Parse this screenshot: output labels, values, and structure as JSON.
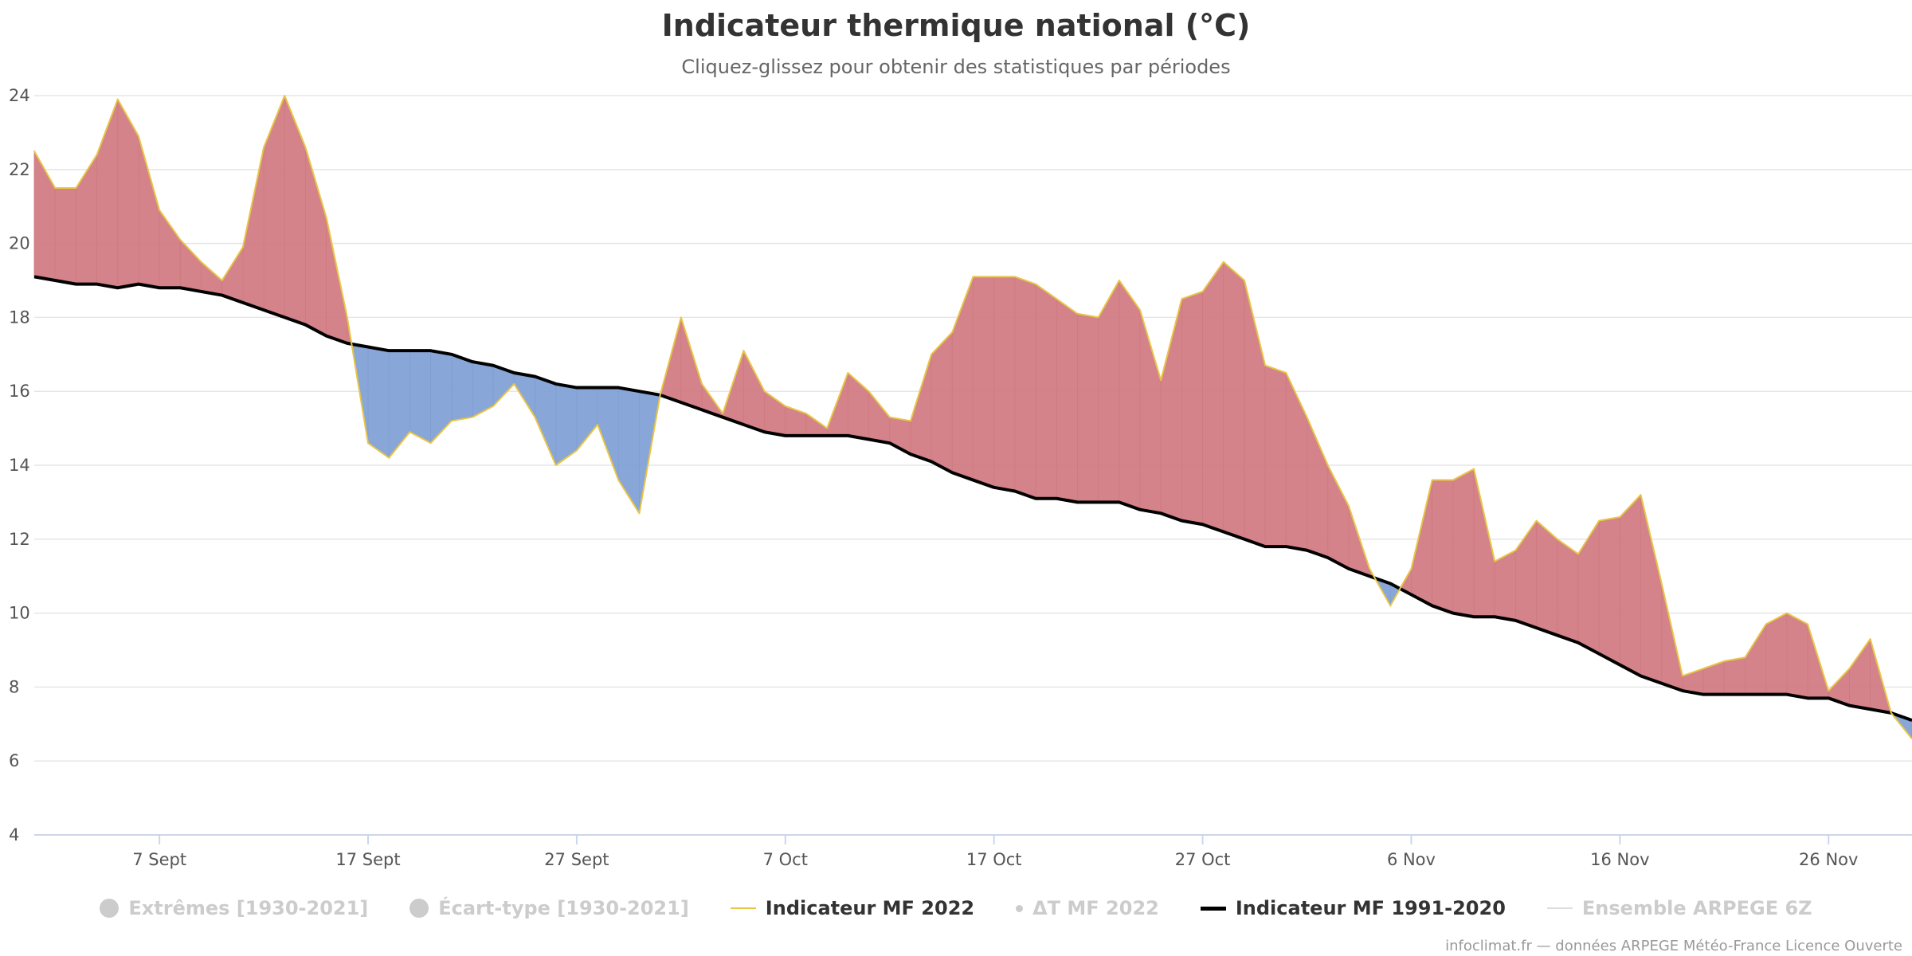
{
  "title": "Indicateur thermique national (°C)",
  "subtitle": "Cliquez-glissez pour obtenir des statistiques par périodes",
  "credits": "infoclimat.fr — données ARPEGE Météo-France Licence Ouverte",
  "legend": [
    {
      "label": "Extrêmes [1930-2021]",
      "symbol": "circle",
      "active": false
    },
    {
      "label": "Écart-type [1930-2021]",
      "symbol": "circle",
      "active": false
    },
    {
      "label": "Indicateur MF 2022",
      "symbol": "line",
      "color": "#e8c547",
      "active": true
    },
    {
      "label": "ΔT MF 2022",
      "symbol": "dot",
      "active": false
    },
    {
      "label": "Indicateur MF 1991-2020",
      "symbol": "line-thick",
      "color": "#000000",
      "active": true
    },
    {
      "label": "Ensemble ARPEGE 6Z",
      "symbol": "line-thin",
      "color": "#dddddd",
      "active": false
    }
  ],
  "chart_data": {
    "type": "area",
    "colors": {
      "above_normal": "#d07a80",
      "below_normal": "#7f9fd4",
      "indicator_line": "#e8c547",
      "normal_line": "#000000",
      "grid": "#e6e6e6",
      "axis": "#ccd6eb"
    },
    "ylim": [
      4,
      24
    ],
    "yticks": [
      4,
      6,
      8,
      10,
      12,
      14,
      16,
      18,
      20,
      22,
      24
    ],
    "x_start": "2022-09-01",
    "x_end": "2022-11-30",
    "xticks": [
      {
        "date": "2022-09-07",
        "label": "7 Sept"
      },
      {
        "date": "2022-09-17",
        "label": "17 Sept"
      },
      {
        "date": "2022-09-27",
        "label": "27 Sept"
      },
      {
        "date": "2022-10-07",
        "label": "7 Oct"
      },
      {
        "date": "2022-10-17",
        "label": "17 Oct"
      },
      {
        "date": "2022-10-27",
        "label": "27 Oct"
      },
      {
        "date": "2022-11-06",
        "label": "6 Nov"
      },
      {
        "date": "2022-11-16",
        "label": "16 Nov"
      },
      {
        "date": "2022-11-26",
        "label": "26 Nov"
      }
    ],
    "start_date": "2022-09-01",
    "series": [
      {
        "name": "Indicateur MF 2022",
        "values": [
          22.5,
          21.5,
          21.5,
          22.4,
          23.9,
          22.9,
          20.9,
          20.1,
          19.5,
          19.0,
          19.9,
          22.6,
          24.0,
          22.6,
          20.7,
          18.0,
          14.6,
          14.2,
          14.9,
          14.6,
          15.2,
          15.3,
          15.6,
          16.2,
          15.3,
          14.0,
          14.4,
          15.1,
          13.6,
          12.7,
          15.9,
          18.0,
          16.2,
          15.4,
          17.1,
          16.0,
          15.6,
          15.4,
          15.0,
          16.5,
          16.0,
          15.3,
          15.2,
          17.0,
          17.6,
          19.1,
          19.1,
          19.1,
          18.9,
          18.5,
          18.1,
          18.0,
          19.0,
          18.2,
          16.3,
          18.5,
          18.7,
          19.5,
          19.0,
          16.7,
          16.5,
          15.3,
          14.0,
          12.9,
          11.2,
          10.2,
          11.2,
          13.6,
          13.6,
          13.9,
          11.4,
          11.7,
          12.5,
          12.0,
          11.6,
          12.5,
          12.6,
          13.2,
          10.8,
          8.3,
          8.5,
          8.7,
          8.8,
          9.7,
          10.0,
          9.7,
          7.9,
          8.5,
          9.3,
          7.3,
          6.6
        ]
      },
      {
        "name": "Indicateur MF 1991-2020",
        "values": [
          19.1,
          19.0,
          18.9,
          18.9,
          18.8,
          18.9,
          18.8,
          18.8,
          18.7,
          18.6,
          18.4,
          18.2,
          18.0,
          17.8,
          17.5,
          17.3,
          17.2,
          17.1,
          17.1,
          17.1,
          17.0,
          16.8,
          16.7,
          16.5,
          16.4,
          16.2,
          16.1,
          16.1,
          16.1,
          16.0,
          15.9,
          15.7,
          15.5,
          15.3,
          15.1,
          14.9,
          14.8,
          14.8,
          14.8,
          14.8,
          14.7,
          14.6,
          14.3,
          14.1,
          13.8,
          13.6,
          13.4,
          13.3,
          13.1,
          13.1,
          13.0,
          13.0,
          13.0,
          12.8,
          12.7,
          12.5,
          12.4,
          12.2,
          12.0,
          11.8,
          11.8,
          11.7,
          11.5,
          11.2,
          11.0,
          10.8,
          10.5,
          10.2,
          10.0,
          9.9,
          9.9,
          9.8,
          9.6,
          9.4,
          9.2,
          8.9,
          8.6,
          8.3,
          8.1,
          7.9,
          7.8,
          7.8,
          7.8,
          7.8,
          7.8,
          7.7,
          7.7,
          7.5,
          7.4,
          7.3,
          7.1
        ]
      }
    ]
  }
}
